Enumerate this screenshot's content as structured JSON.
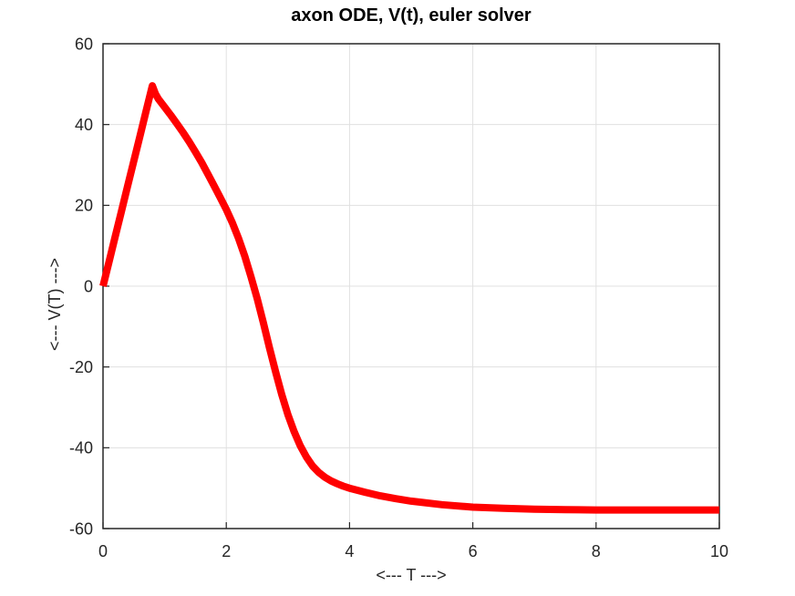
{
  "figure": {
    "background": "#ffffff"
  },
  "style": {
    "axis_color": "#262626",
    "grid_color": "#e0e0e0",
    "tick_label_color": "#262626",
    "title_color": "#000000",
    "curve_color": "#ff0000"
  },
  "chart_data": {
    "type": "line",
    "title": "axon ODE, V(t), euler solver",
    "xlabel": "<--- T --->",
    "ylabel": "<--- V(T) --->",
    "xlim": [
      0,
      10
    ],
    "ylim": [
      -60,
      60
    ],
    "xticks": [
      0,
      2,
      4,
      6,
      8,
      10
    ],
    "yticks": [
      -60,
      -40,
      -20,
      0,
      20,
      40,
      60
    ],
    "grid": true,
    "legend": "none",
    "series": [
      {
        "name": "V(t)",
        "color": "#ff0000",
        "line_width": 8,
        "points": [
          [
            0.0,
            0.0
          ],
          [
            0.1,
            6.2
          ],
          [
            0.2,
            12.4
          ],
          [
            0.3,
            18.6
          ],
          [
            0.4,
            24.8
          ],
          [
            0.5,
            31.0
          ],
          [
            0.6,
            37.2
          ],
          [
            0.7,
            43.4
          ],
          [
            0.8,
            49.6
          ],
          [
            0.85,
            47.6
          ],
          [
            0.9,
            46.3
          ],
          [
            1.0,
            44.3
          ],
          [
            1.1,
            42.3
          ],
          [
            1.2,
            40.2
          ],
          [
            1.3,
            38.0
          ],
          [
            1.4,
            35.7
          ],
          [
            1.5,
            33.2
          ],
          [
            1.6,
            30.6
          ],
          [
            1.7,
            27.8
          ],
          [
            1.8,
            24.9
          ],
          [
            1.9,
            22.0
          ],
          [
            2.0,
            19.0
          ],
          [
            2.1,
            15.6
          ],
          [
            2.2,
            11.8
          ],
          [
            2.3,
            7.4
          ],
          [
            2.4,
            2.4
          ],
          [
            2.5,
            -3.0
          ],
          [
            2.6,
            -9.0
          ],
          [
            2.7,
            -15.2
          ],
          [
            2.8,
            -21.2
          ],
          [
            2.9,
            -26.8
          ],
          [
            3.0,
            -31.8
          ],
          [
            3.1,
            -36.0
          ],
          [
            3.2,
            -39.5
          ],
          [
            3.3,
            -42.3
          ],
          [
            3.4,
            -44.5
          ],
          [
            3.5,
            -46.1
          ],
          [
            3.6,
            -47.3
          ],
          [
            3.7,
            -48.2
          ],
          [
            3.8,
            -48.9
          ],
          [
            3.9,
            -49.5
          ],
          [
            4.0,
            -50.0
          ],
          [
            4.25,
            -51.0
          ],
          [
            4.5,
            -51.9
          ],
          [
            4.75,
            -52.6
          ],
          [
            5.0,
            -53.2
          ],
          [
            5.5,
            -54.1
          ],
          [
            6.0,
            -54.7
          ],
          [
            6.5,
            -55.0
          ],
          [
            7.0,
            -55.2
          ],
          [
            7.5,
            -55.3
          ],
          [
            8.0,
            -55.4
          ],
          [
            8.5,
            -55.4
          ],
          [
            9.0,
            -55.4
          ],
          [
            9.5,
            -55.4
          ],
          [
            10.0,
            -55.4
          ]
        ]
      }
    ]
  }
}
